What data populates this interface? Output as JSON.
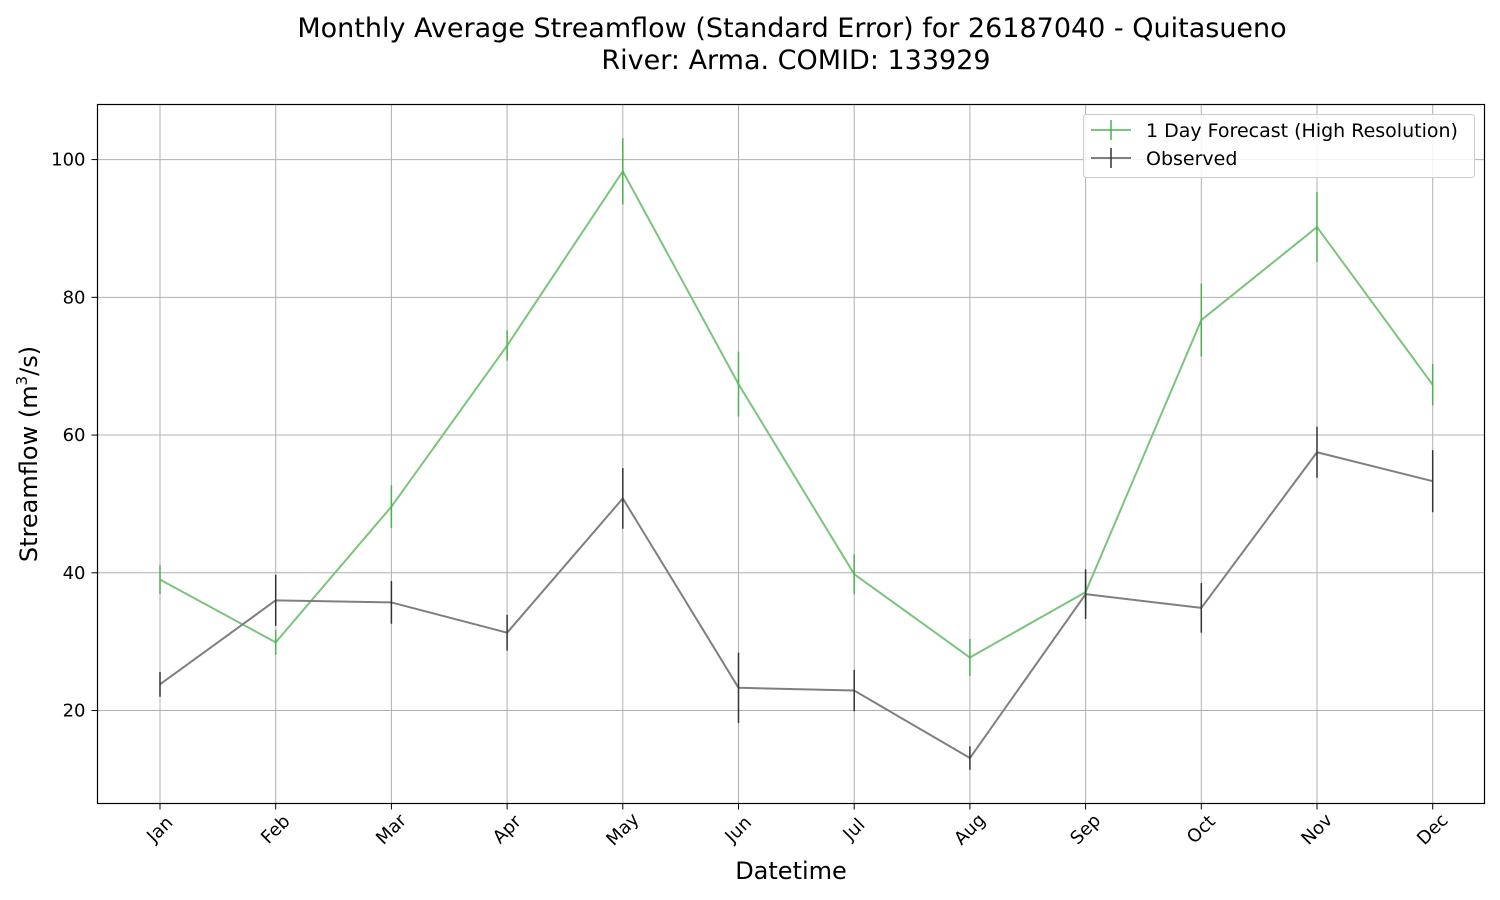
{
  "chart_data": {
    "type": "line",
    "title_line1": "Monthly Average Streamflow (Standard Error) for 26187040 - Quitasueno",
    "title_line2": "River: Arma. COMID: 133929",
    "xlabel": "Datetime",
    "ylabel_main": "Streamflow (m",
    "ylabel_sup": "3",
    "ylabel_tail": "/s)",
    "categories": [
      "Jan",
      "Feb",
      "Mar",
      "Apr",
      "May",
      "Jun",
      "Jul",
      "Aug",
      "Sep",
      "Oct",
      "Nov",
      "Dec"
    ],
    "ylim": [
      6.5,
      108
    ],
    "yticks": [
      20,
      40,
      60,
      80,
      100
    ],
    "grid": true,
    "legend_position": "top-right",
    "series": [
      {
        "name": "1 Day Forecast (High Resolution)",
        "color": "#7cc47c",
        "errorbar_color": "#4caf50",
        "values": [
          39.0,
          29.9,
          49.6,
          73.0,
          98.3,
          67.4,
          39.8,
          27.7,
          37.2,
          76.7,
          90.2,
          67.3
        ],
        "errors": [
          2.1,
          1.8,
          3.1,
          2.2,
          4.8,
          4.7,
          2.9,
          2.7,
          2.3,
          5.3,
          5.1,
          3.0
        ]
      },
      {
        "name": "Observed",
        "color": "#7f7f7f",
        "errorbar_color": "#333333",
        "values": [
          23.8,
          36.0,
          35.7,
          31.3,
          50.8,
          23.3,
          22.9,
          13.1,
          36.9,
          34.9,
          57.5,
          53.3
        ],
        "errors": [
          1.8,
          3.7,
          3.1,
          2.6,
          4.4,
          5.1,
          3.0,
          1.7,
          3.6,
          3.6,
          3.7,
          4.5
        ]
      }
    ]
  }
}
